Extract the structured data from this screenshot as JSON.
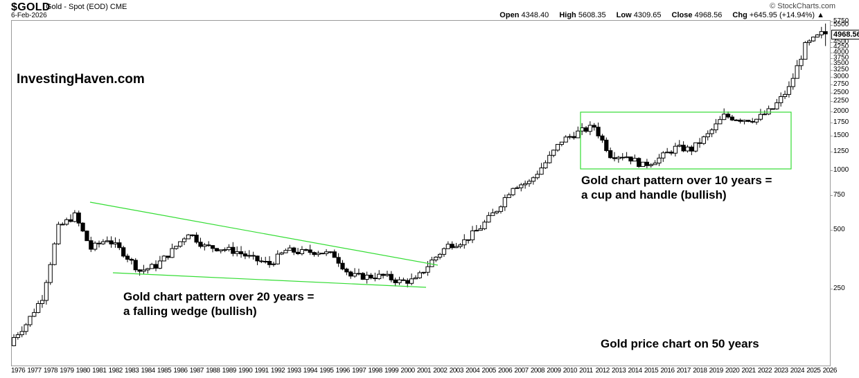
{
  "header": {
    "symbol": "$GOLD",
    "name": "Gold - Spot (EOD) CME",
    "date": "6-Feb-2026",
    "copyright": "© StockCharts.com",
    "open_label": "Open",
    "open": "4348.40",
    "high_label": "High",
    "high": "5608.35",
    "low_label": "Low",
    "low": "4309.65",
    "close_label": "Close",
    "close": "4968.56",
    "chg_label": "Chg",
    "chg": "+645.95 (+14.94%) ▲"
  },
  "price_tag": "4968.56",
  "brand": "InvestingHaven.com",
  "annotations": {
    "wedge_line1": "Gold chart pattern over 20 years =",
    "wedge_line2": "a falling wedge (bullish)",
    "cup_line1": "Gold chart pattern over 10 years =",
    "cup_line2": "a cup and handle (bullish)",
    "footer": "Gold price chart on 50 years"
  },
  "colors": {
    "pattern": "#33dd33",
    "candle": "#000000",
    "axis": "#9a9a9a"
  },
  "chart_data": {
    "type": "candlestick",
    "title": "$GOLD Gold - Spot (EOD) CME",
    "subtitle": "Gold price chart on 50 years",
    "yscale": "log",
    "ylim": [
      100,
      5750
    ],
    "y_ticks": [
      250,
      500,
      750,
      1000,
      1250,
      1500,
      1750,
      2000,
      2250,
      2500,
      2750,
      3000,
      3250,
      3500,
      3750,
      4000,
      4250,
      4500,
      5500,
      5750
    ],
    "x_ticks": [
      "1976",
      "1977",
      "1978",
      "1979",
      "1980",
      "1981",
      "1982",
      "1983",
      "1984",
      "1985",
      "1986",
      "1987",
      "1988",
      "1989",
      "1990",
      "1991",
      "1992",
      "1993",
      "1994",
      "1995",
      "1996",
      "1997",
      "1998",
      "1999",
      "2000",
      "2001",
      "2002",
      "2003",
      "2004",
      "2005",
      "2006",
      "2007",
      "2008",
      "2009",
      "2010",
      "2011",
      "2012",
      "2013",
      "2014",
      "2015",
      "2016",
      "2017",
      "2018",
      "2019",
      "2020",
      "2021",
      "2022",
      "2023",
      "2024",
      "2025",
      "2026"
    ],
    "period": "quarterly (approx.)",
    "series_close_by_year": {
      "1976": 134,
      "1977": 165,
      "1978": 226,
      "1979": 512,
      "1980": 590,
      "1981": 400,
      "1982": 448,
      "1983": 381,
      "1984": 308,
      "1985": 327,
      "1986": 390,
      "1987": 484,
      "1988": 410,
      "1989": 401,
      "1990": 386,
      "1991": 353,
      "1992": 333,
      "1993": 391,
      "1994": 383,
      "1995": 387,
      "1996": 369,
      "1997": 290,
      "1998": 288,
      "1999": 290,
      "2000": 272,
      "2001": 276,
      "2002": 347,
      "2003": 416,
      "2004": 438,
      "2005": 513,
      "2006": 632,
      "2007": 834,
      "2008": 870,
      "2009": 1096,
      "2010": 1421,
      "2011": 1565,
      "2012": 1675,
      "2013": 1202,
      "2014": 1183,
      "2015": 1061,
      "2016": 1152,
      "2017": 1303,
      "2018": 1282,
      "2019": 1517,
      "2020": 1895,
      "2021": 1829,
      "2022": 1824,
      "2023": 2063,
      "2024": 2625,
      "2025": 4320,
      "2026": 4968.56
    },
    "latest": {
      "open": 4348.4,
      "high": 5608.35,
      "low": 4309.65,
      "close": 4968.56,
      "change": 645.95,
      "change_pct": 14.94
    },
    "overlays": [
      {
        "type": "falling-wedge",
        "span": "1980-2001",
        "upper": [
          [
            1980.5,
            700
          ],
          [
            2001.8,
            330
          ]
        ],
        "lower": [
          [
            1982.3,
            300
          ],
          [
            2001.5,
            255
          ]
        ]
      },
      {
        "type": "cup-and-handle-box",
        "span": "2011-2023",
        "price_range": [
          1030,
          2000
        ]
      }
    ],
    "grid": false,
    "legend": "none"
  }
}
